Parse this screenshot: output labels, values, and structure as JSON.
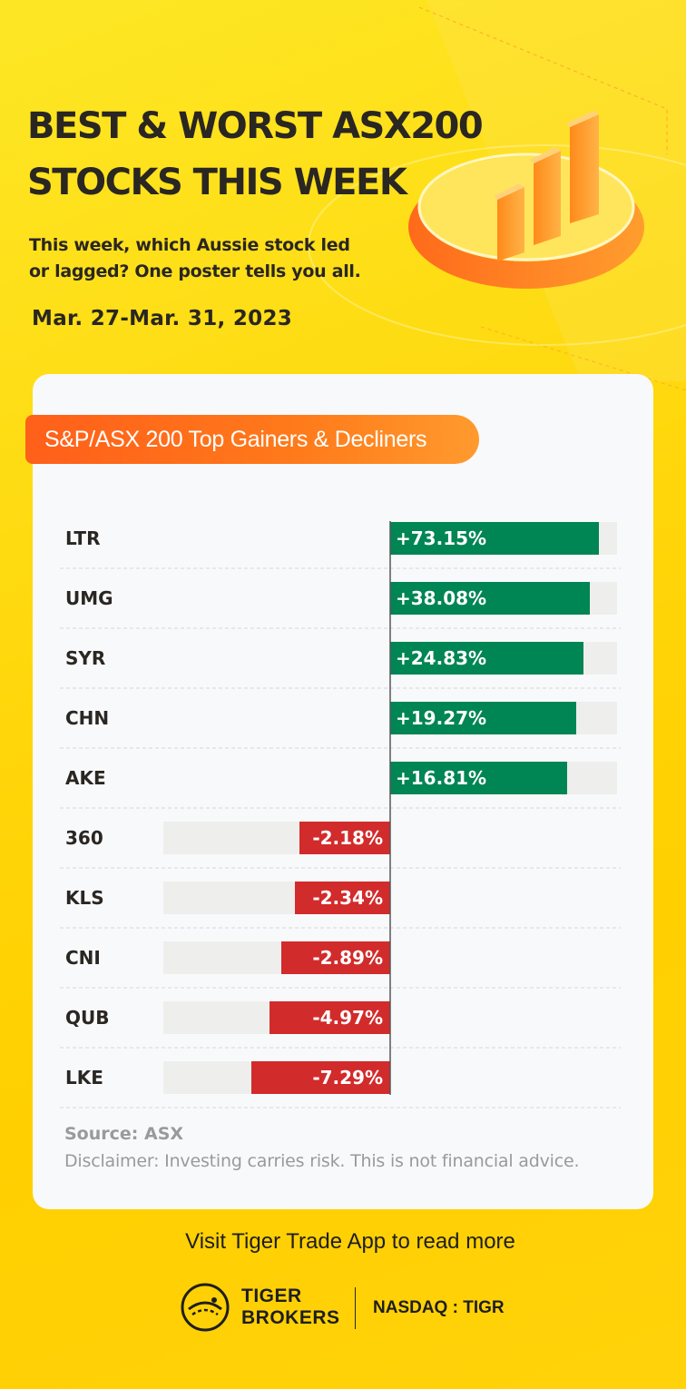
{
  "header": {
    "title_line1": "BEST & WORST ASX200",
    "title_line2": "STOCKS THIS WEEK",
    "subtitle_line1": "This week, which Aussie stock led",
    "subtitle_line2": "or lagged? One poster tells you all.",
    "date_range": "Mar. 27-Mar. 31, 2023"
  },
  "card": {
    "heading": "S&P/ASX 200 Top Gainers & Decliners"
  },
  "chart_data": {
    "type": "bar",
    "orientation": "horizontal-diverging",
    "categories": [
      "LTR",
      "UMG",
      "SYR",
      "CHN",
      "AKE",
      "360",
      "KLS",
      "CNI",
      "QUB",
      "LKE"
    ],
    "values": [
      73.15,
      38.08,
      24.83,
      19.27,
      16.81,
      -2.18,
      -2.34,
      -2.89,
      -4.97,
      -7.29
    ],
    "labels": [
      "+73.15%",
      "+38.08%",
      "+24.83%",
      "+19.27%",
      "+16.81%",
      "-2.18%",
      "-2.34%",
      "-2.89%",
      "-4.97%",
      "-7.29%"
    ],
    "fill_fractions": [
      0.92,
      0.88,
      0.85,
      0.82,
      0.78,
      0.4,
      0.42,
      0.48,
      0.53,
      0.61
    ],
    "colors": {
      "gain": "#008554",
      "loss": "#d22b2b",
      "track": "#eeeeec",
      "axis": "#555555"
    }
  },
  "footer": {
    "source": "Source: ASX",
    "disclaimer": "Disclaimer: Investing carries risk. This is not financial advice.",
    "visit": "Visit Tiger Trade App to read more",
    "brand_line1": "TIGER",
    "brand_line2": "BROKERS",
    "ticker": "NASDAQ : TIGR"
  },
  "colors": {
    "accent": "#ff6a1a",
    "background": "#ffd60a",
    "text": "#2a2622"
  },
  "icons": {
    "hero": "bar-chart-podium-icon",
    "logo": "tiger-logo-icon"
  }
}
